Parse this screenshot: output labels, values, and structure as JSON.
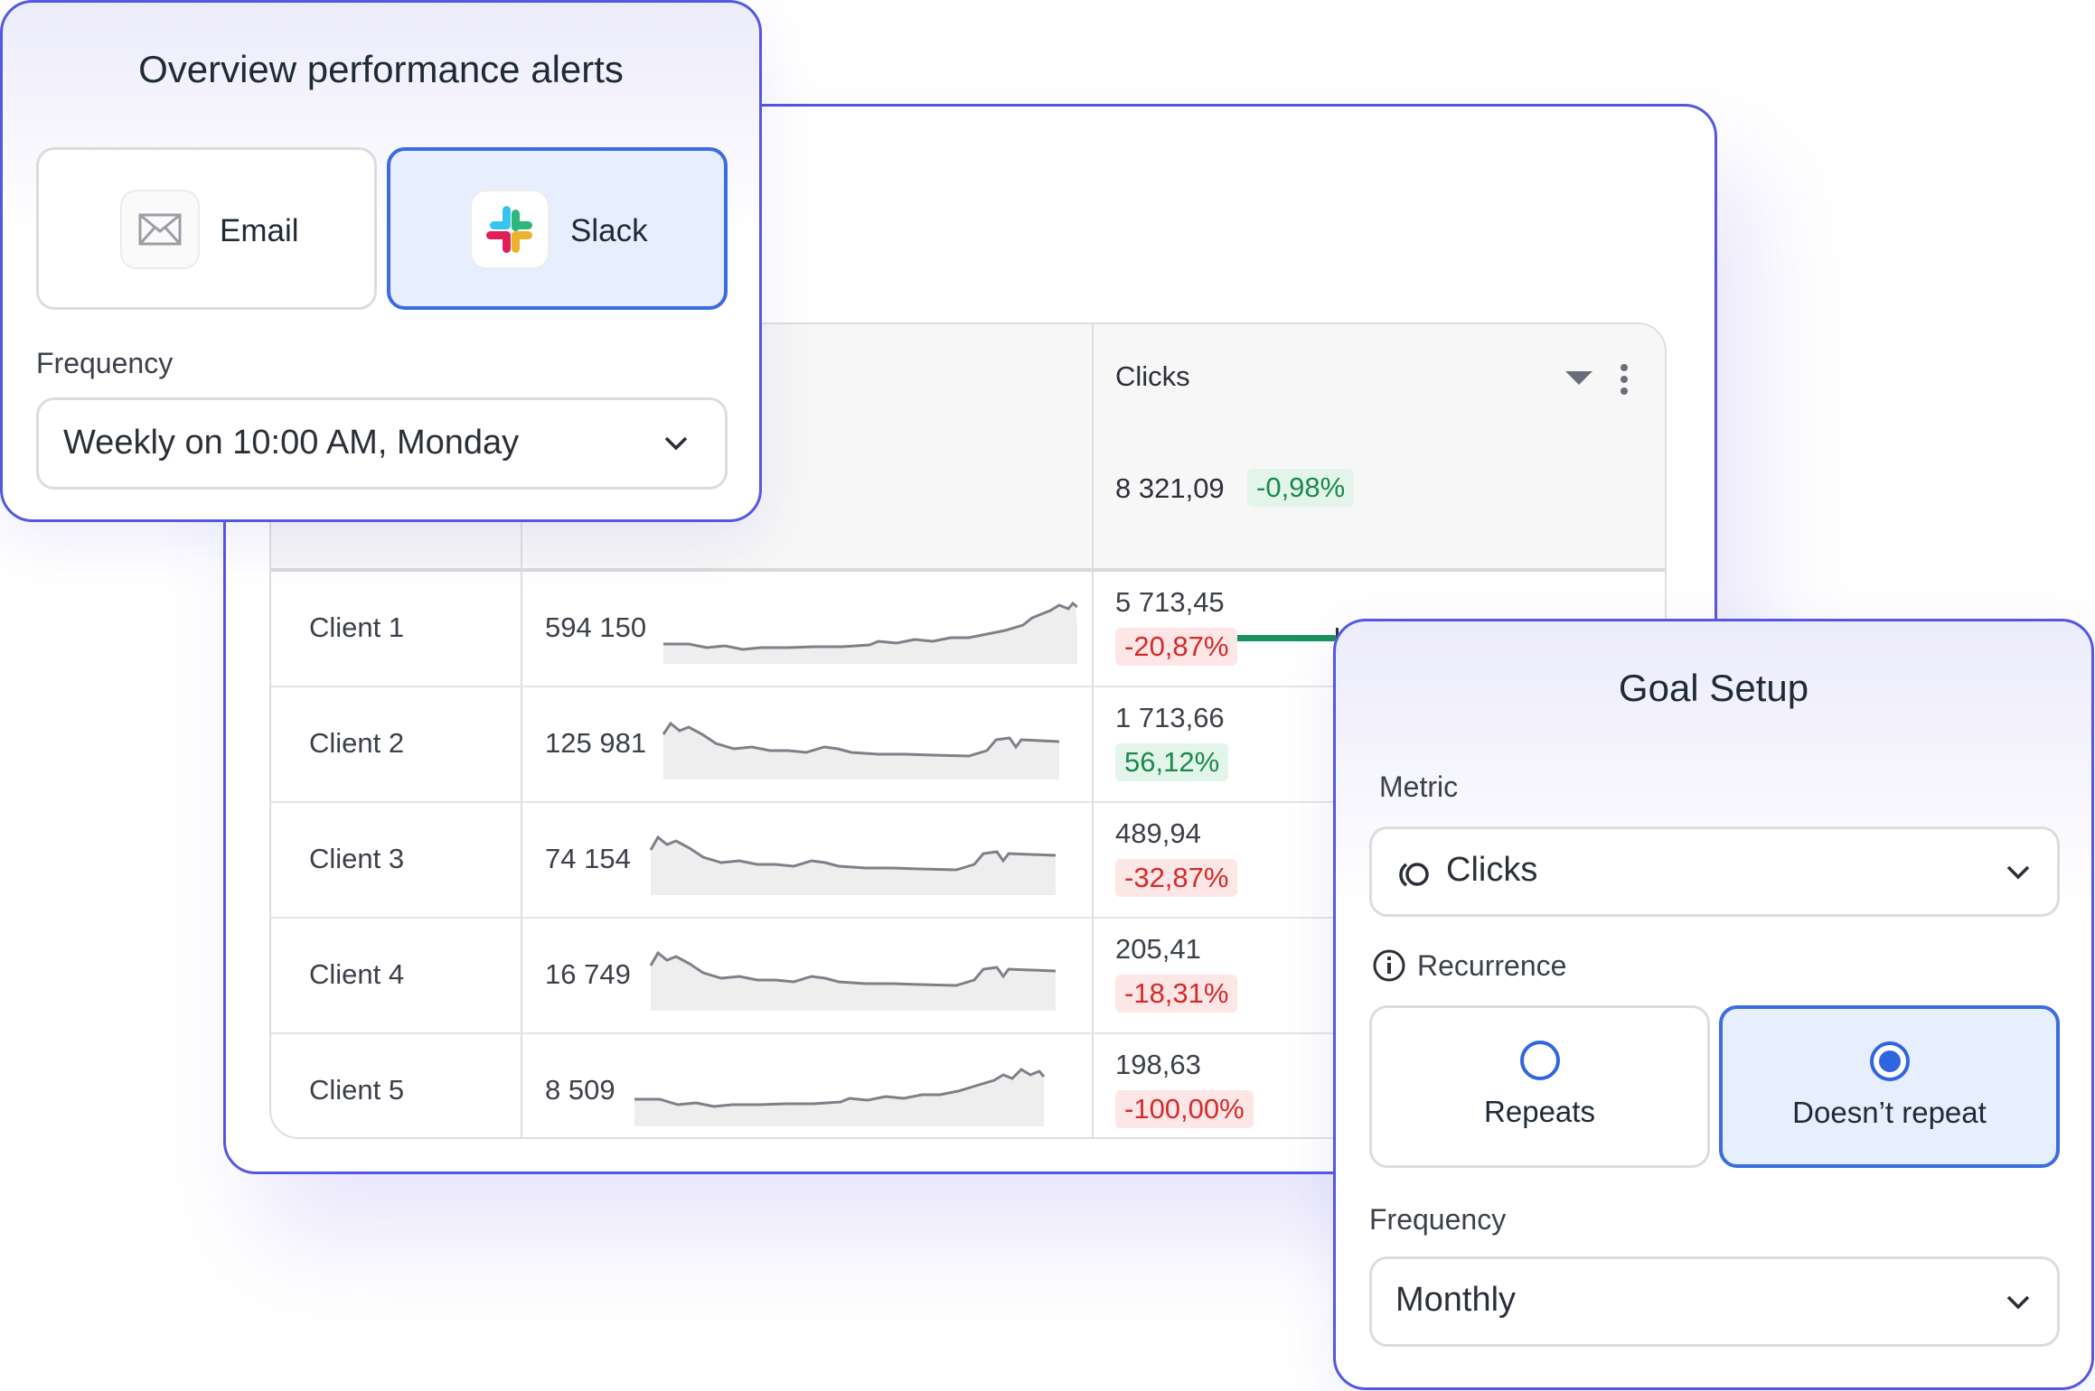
{
  "table": {
    "column_title": "Clicks",
    "total": {
      "value": "8 321,09",
      "change": "-0,98%",
      "progress": 0.45
    },
    "rows": [
      {
        "client": "Client 1",
        "count": "594 150",
        "clicks": "5 713,45",
        "change": "-20,87%",
        "trend": "neg"
      },
      {
        "client": "Client 2",
        "count": "125 981",
        "clicks": "1 713,66",
        "change": "56,12%",
        "trend": "pos"
      },
      {
        "client": "Client 3",
        "count": "74 154",
        "clicks": "489,94",
        "change": "-32,87%",
        "trend": "neg"
      },
      {
        "client": "Client 4",
        "count": "16 749",
        "clicks": "205,41",
        "change": "-18,31%",
        "trend": "neg"
      },
      {
        "client": "Client 5",
        "count": "8 509",
        "clicks": "198,63",
        "change": "-100,00%",
        "trend": "neg"
      }
    ]
  },
  "alerts": {
    "title": "Overview performance alerts",
    "channels": [
      {
        "label": "Email",
        "icon": "envelope-icon",
        "selected": false
      },
      {
        "label": "Slack",
        "icon": "slack-icon",
        "selected": true
      }
    ],
    "frequency_label": "Frequency",
    "frequency_value": "Weekly on 10:00 AM, Monday"
  },
  "goal": {
    "title": "Goal Setup",
    "metric_label": "Metric",
    "metric_value": "Clicks",
    "metric_icon": "clicks-icon",
    "recurrence_label": "Recurrence",
    "recurrence_icon": "info-icon",
    "options": [
      {
        "label": "Repeats",
        "selected": false
      },
      {
        "label": "Doesn’t repeat",
        "selected": true
      }
    ],
    "frequency_label": "Frequency",
    "frequency_value": "Monthly"
  },
  "colors": {
    "accent": "#5457e0",
    "selected": "#3b6ce0",
    "positive": "#1a8a4c",
    "negative": "#d42b2b",
    "progress": "#17935b"
  }
}
